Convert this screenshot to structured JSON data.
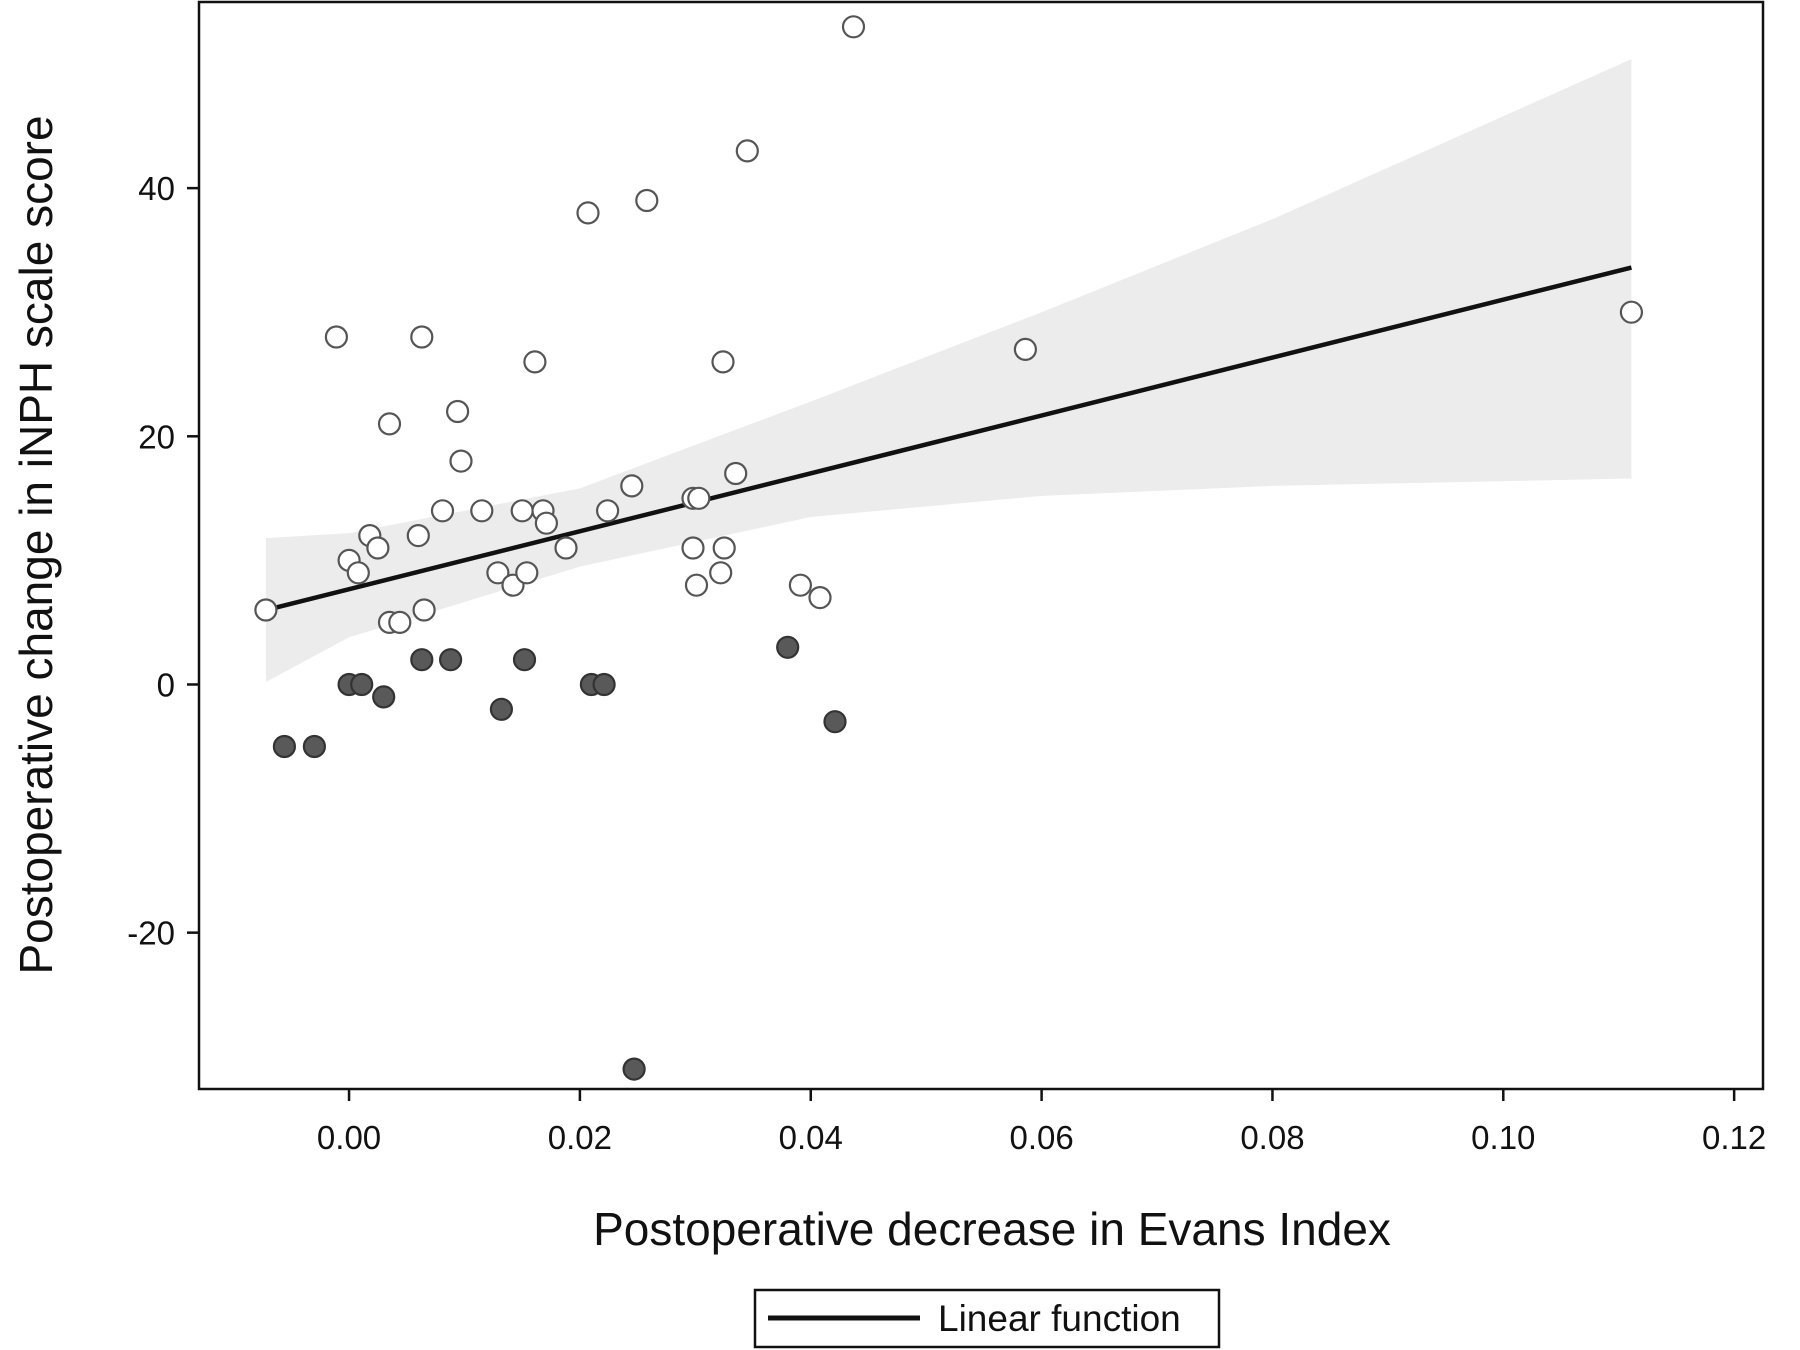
{
  "chart_data": {
    "type": "scatter",
    "title": "",
    "xlabel": "Postoperative decrease in Evans Index",
    "ylabel": "Postoperative change in iNPH scale score",
    "xlim": [
      -0.013,
      0.1225
    ],
    "ylim": [
      -32.6,
      55
    ],
    "xticks": [
      0.0,
      0.02,
      0.04,
      0.06,
      0.08,
      0.1,
      0.12
    ],
    "xtick_labels": [
      "0.00",
      "0.02",
      "0.04",
      "0.06",
      "0.08",
      "0.10",
      "0.12"
    ],
    "yticks": [
      -20,
      0,
      20,
      40
    ],
    "ytick_labels": [
      "-20",
      "0",
      "20",
      "40"
    ],
    "grid": false,
    "legend": {
      "position": "bottom-center",
      "entries": [
        "Linear function"
      ]
    },
    "colors": {
      "open_marker_fill": "#ffffff",
      "open_marker_stroke": "#555555",
      "filled_marker_fill": "#595959",
      "filled_marker_stroke": "#333333",
      "fit_line": "#111111",
      "confidence_band": "#ececec"
    },
    "series": [
      {
        "marker": "open-circle",
        "points": [
          [
            -0.0072,
            6
          ],
          [
            -0.0011,
            28
          ],
          [
            0.0,
            10
          ],
          [
            0.0008,
            9
          ],
          [
            0.0018,
            12
          ],
          [
            0.0025,
            11
          ],
          [
            0.0035,
            21
          ],
          [
            0.0035,
            5
          ],
          [
            0.0044,
            5
          ],
          [
            0.006,
            12
          ],
          [
            0.0063,
            28
          ],
          [
            0.0065,
            6
          ],
          [
            0.0081,
            14
          ],
          [
            0.0094,
            22
          ],
          [
            0.0097,
            18
          ],
          [
            0.0115,
            14
          ],
          [
            0.0129,
            9
          ],
          [
            0.0142,
            8
          ],
          [
            0.015,
            14
          ],
          [
            0.0154,
            9
          ],
          [
            0.0161,
            26
          ],
          [
            0.0168,
            14
          ],
          [
            0.0171,
            13
          ],
          [
            0.0188,
            11
          ],
          [
            0.0207,
            38
          ],
          [
            0.0224,
            14
          ],
          [
            0.0245,
            16
          ],
          [
            0.0258,
            39
          ],
          [
            0.0298,
            15
          ],
          [
            0.0298,
            11
          ],
          [
            0.0301,
            8
          ],
          [
            0.0303,
            15
          ],
          [
            0.0322,
            9
          ],
          [
            0.0324,
            26
          ],
          [
            0.0325,
            11
          ],
          [
            0.0335,
            17
          ],
          [
            0.0345,
            43
          ],
          [
            0.0391,
            8
          ],
          [
            0.0408,
            7
          ],
          [
            0.0437,
            53
          ],
          [
            0.0586,
            27
          ],
          [
            0.1111,
            30
          ]
        ]
      },
      {
        "marker": "filled-circle",
        "points": [
          [
            -0.0056,
            -5
          ],
          [
            -0.003,
            -5
          ],
          [
            0.0,
            0
          ],
          [
            0.0011,
            0
          ],
          [
            0.003,
            -1
          ],
          [
            0.0063,
            2
          ],
          [
            0.0088,
            2
          ],
          [
            0.0132,
            -2
          ],
          [
            0.0152,
            2
          ],
          [
            0.021,
            0
          ],
          [
            0.0221,
            0
          ],
          [
            0.0247,
            -31
          ],
          [
            0.038,
            3
          ],
          [
            0.0421,
            -3
          ]
        ]
      },
      {
        "name": "Linear function",
        "type": "line",
        "x": [
          -0.0072,
          0.1111
        ],
        "y": [
          6.0,
          33.6
        ]
      },
      {
        "type": "area",
        "x": [
          -0.0072,
          0.0,
          0.02,
          0.04,
          0.06,
          0.08,
          0.1111
        ],
        "lower": [
          0.2,
          3.8,
          9.5,
          13.5,
          15.2,
          16.0,
          16.6
        ],
        "upper": [
          11.8,
          12.2,
          15.8,
          22.8,
          30.0,
          37.5,
          50.4
        ]
      }
    ]
  }
}
